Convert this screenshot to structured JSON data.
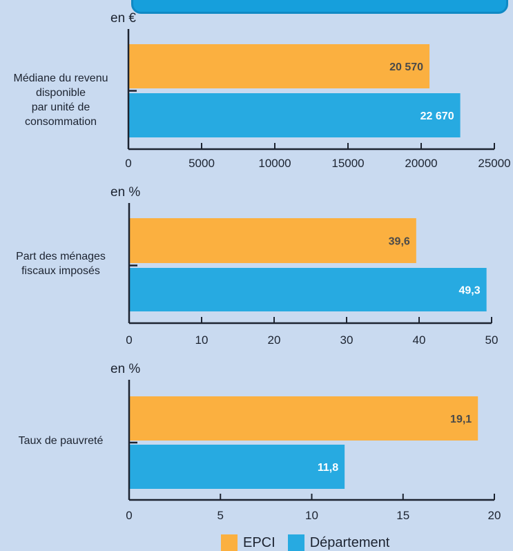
{
  "chart_data": [
    {
      "type": "bar",
      "orientation": "horizontal",
      "unit_label": "en €",
      "categories": [
        "Médiane du revenu\ndisponible\npar unité de\nconsommation"
      ],
      "series": [
        {
          "name": "EPCI",
          "values": [
            20570
          ],
          "labels": [
            "20 570"
          ]
        },
        {
          "name": "Département",
          "values": [
            22670
          ],
          "labels": [
            "22 670"
          ]
        }
      ],
      "xlim": [
        0,
        25000
      ],
      "xticks": [
        "0",
        "5000",
        "10000",
        "15000",
        "20000",
        "25000"
      ]
    },
    {
      "type": "bar",
      "orientation": "horizontal",
      "unit_label": "en %",
      "categories": [
        "Part des ménages\nfiscaux imposés"
      ],
      "series": [
        {
          "name": "EPCI",
          "values": [
            39.6
          ],
          "labels": [
            "39,6"
          ]
        },
        {
          "name": "Département",
          "values": [
            49.3
          ],
          "labels": [
            "49,3"
          ]
        }
      ],
      "xlim": [
        0,
        50
      ],
      "xticks": [
        "0",
        "10",
        "20",
        "30",
        "40",
        "50"
      ]
    },
    {
      "type": "bar",
      "orientation": "horizontal",
      "unit_label": "en %",
      "categories": [
        "Taux de pauvreté"
      ],
      "series": [
        {
          "name": "EPCI",
          "values": [
            19.1
          ],
          "labels": [
            "19,1"
          ]
        },
        {
          "name": "Département",
          "values": [
            11.8
          ],
          "labels": [
            "11,8"
          ]
        }
      ],
      "xlim": [
        0,
        20
      ],
      "xticks": [
        "0",
        "5",
        "10",
        "15",
        "20"
      ]
    }
  ],
  "legend": [
    {
      "label": "EPCI",
      "color": "#fbb040"
    },
    {
      "label": "Département",
      "color": "#27aae1"
    }
  ],
  "colors": {
    "epci": "#fbb040",
    "departement": "#27aae1",
    "epci_value_text": "#4a4a4a",
    "departement_value_text": "#ffffff",
    "axis": "#1c2330"
  }
}
